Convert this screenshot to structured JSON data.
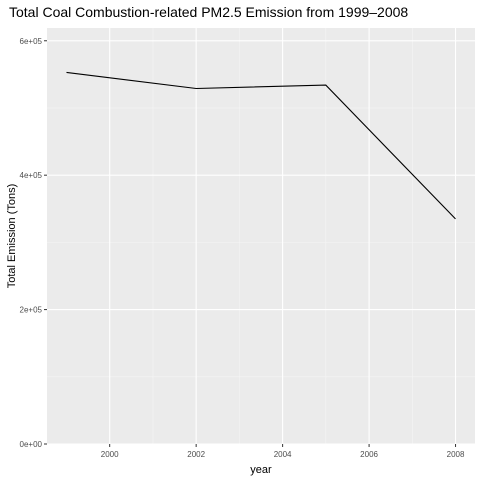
{
  "chart_data": {
    "type": "line",
    "title": "Total Coal Combustion-related PM2.5 Emission from 1999–2008",
    "xlabel": "year",
    "ylabel": "Total Emission (Tons)",
    "x": [
      1999,
      2002,
      2005,
      2008
    ],
    "series": [
      {
        "values": [
          553000,
          529000,
          534000,
          335000
        ]
      }
    ],
    "xlim": [
      1998.55,
      2008.45
    ],
    "ylim": [
      0,
      619000
    ],
    "x_ticks": [
      2000,
      2002,
      2004,
      2006,
      2008
    ],
    "x_tick_labels": [
      "2000",
      "2002",
      "2004",
      "2006",
      "2008"
    ],
    "y_ticks": [
      0,
      200000,
      400000,
      600000
    ],
    "y_tick_labels": [
      "0e+00",
      "2e+05",
      "4e+05",
      "6e+05"
    ],
    "grid": true,
    "legend": "none",
    "colors": {
      "panel_background": "#ebebeb",
      "grid_major": "#ffffff",
      "grid_minor": "#f5f5f5",
      "line": "#000000",
      "tick_text": "#4d4d4d"
    }
  }
}
